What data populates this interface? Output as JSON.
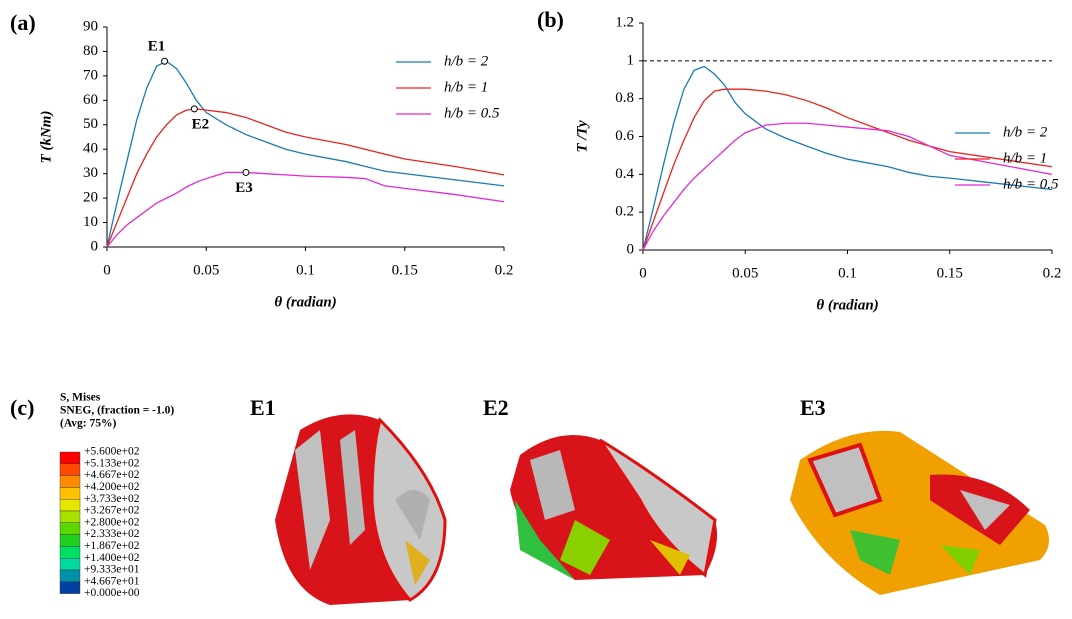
{
  "chart_data": [
    {
      "type": "line",
      "label": "(a)",
      "xlabel": "θ (radian)",
      "ylabel": "T (kNm)",
      "x": [
        0,
        0.005,
        0.01,
        0.015,
        0.02,
        0.025,
        0.03,
        0.035,
        0.04,
        0.045,
        0.05,
        0.06,
        0.07,
        0.08,
        0.09,
        0.1,
        0.12,
        0.13,
        0.14,
        0.15,
        0.175,
        0.2
      ],
      "series": [
        {
          "name": "h/b = 2",
          "color": "#1a7ab5",
          "values": [
            0,
            18,
            35,
            52,
            65,
            74,
            76,
            73,
            67,
            60,
            55,
            50,
            46,
            43,
            40,
            38,
            35,
            33,
            31,
            30,
            27.5,
            25
          ]
        },
        {
          "name": "h/b = 1",
          "color": "#e8231f",
          "values": [
            0,
            10,
            20,
            30,
            38,
            45,
            50,
            54,
            56,
            56.5,
            56,
            55,
            53,
            50,
            47,
            45,
            42,
            40,
            38,
            36,
            33,
            29.5
          ]
        },
        {
          "name": "h/b = 0.5",
          "color": "#e22bd3",
          "values": [
            0,
            5,
            9,
            12,
            15,
            18,
            20,
            22,
            24.5,
            26.5,
            28,
            30.5,
            30.5,
            30,
            29.5,
            29,
            28.5,
            28,
            25,
            24,
            21.5,
            18.5
          ]
        }
      ],
      "annotations": [
        {
          "text": "E1",
          "x": 0.029,
          "y": 76,
          "color": "#1a7ab5"
        },
        {
          "text": "E2",
          "x": 0.044,
          "y": 56.5,
          "color": "#e8231f"
        },
        {
          "text": "E3",
          "x": 0.07,
          "y": 30.5,
          "color": "#e22bd3"
        }
      ],
      "xlim": [
        0,
        0.2
      ],
      "xticks": [
        0,
        0.05,
        0.1,
        0.15,
        0.2
      ],
      "ylim": [
        0,
        90
      ],
      "yticks": [
        0,
        10,
        20,
        30,
        40,
        50,
        60,
        70,
        80,
        90
      ],
      "legend": "upper right"
    },
    {
      "type": "line",
      "label": "(b)",
      "xlabel": "θ (radian)",
      "ylabel": "T /Ty",
      "x": [
        0,
        0.005,
        0.01,
        0.015,
        0.02,
        0.025,
        0.03,
        0.035,
        0.04,
        0.045,
        0.05,
        0.06,
        0.07,
        0.08,
        0.09,
        0.1,
        0.12,
        0.13,
        0.14,
        0.15,
        0.175,
        0.2
      ],
      "series": [
        {
          "name": "h/b = 2",
          "color": "#1a7ab5",
          "values": [
            0,
            0.22,
            0.45,
            0.67,
            0.85,
            0.95,
            0.97,
            0.93,
            0.87,
            0.78,
            0.72,
            0.64,
            0.59,
            0.55,
            0.51,
            0.48,
            0.44,
            0.41,
            0.39,
            0.38,
            0.35,
            0.32
          ]
        },
        {
          "name": "h/b = 1",
          "color": "#e8231f",
          "values": [
            0,
            0.15,
            0.3,
            0.45,
            0.58,
            0.7,
            0.79,
            0.84,
            0.85,
            0.85,
            0.85,
            0.84,
            0.82,
            0.79,
            0.75,
            0.7,
            0.62,
            0.58,
            0.55,
            0.52,
            0.48,
            0.44
          ]
        },
        {
          "name": "h/b = 0.5",
          "color": "#e22bd3",
          "values": [
            0,
            0.1,
            0.18,
            0.25,
            0.32,
            0.38,
            0.43,
            0.48,
            0.53,
            0.58,
            0.62,
            0.66,
            0.67,
            0.67,
            0.66,
            0.65,
            0.63,
            0.6,
            0.55,
            0.5,
            0.45,
            0.4
          ]
        }
      ],
      "hline": 1,
      "xlim": [
        0,
        0.2
      ],
      "xticks": [
        0,
        0.05,
        0.1,
        0.15,
        0.2
      ],
      "ylim": [
        0,
        1.2
      ],
      "yticks": [
        0,
        0.2,
        0.4,
        0.6,
        0.8,
        1,
        1.2
      ],
      "legend": "center right"
    }
  ],
  "panel_c": {
    "label": "(c)",
    "title": [
      "S, Mises",
      "SNEG, (fraction = -1.0)",
      "(Avg: 75%)"
    ],
    "levels": [
      "+5.600e+02",
      "+5.133e+02",
      "+4.667e+02",
      "+4.200e+02",
      "+3.733e+02",
      "+3.267e+02",
      "+2.800e+02",
      "+2.333e+02",
      "+1.867e+02",
      "+1.400e+02",
      "+9.333e+01",
      "+4.667e+01",
      "+0.000e+00"
    ],
    "colors": [
      "#ff0000",
      "#ff4800",
      "#ff8c00",
      "#ffc000",
      "#e6e600",
      "#a8e000",
      "#5ad800",
      "#20d020",
      "#00e060",
      "#00d8a0",
      "#0090a8",
      "#0040a0"
    ],
    "images": [
      "E1",
      "E2",
      "E3"
    ]
  }
}
